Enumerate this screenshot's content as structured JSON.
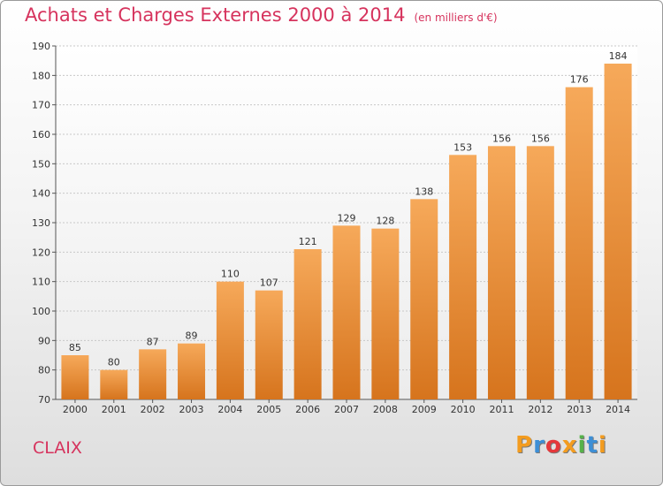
{
  "header": {
    "title": "Achats et Charges Externes 2000 à 2014",
    "unit": "(en milliers d'€)"
  },
  "footer": {
    "commune": "CLAIX",
    "logo_letters": [
      "P",
      "r",
      "o",
      "x",
      "i",
      "t",
      "i"
    ],
    "logo_colors": [
      "#f39c1f",
      "#3d8fd6",
      "#e5383b",
      "#f39c1f",
      "#56b24a",
      "#3d8fd6",
      "#f39c1f"
    ]
  },
  "colors": {
    "bar_light": "#f6a95a",
    "bar_dark": "#d6741d",
    "title": "#d6335d",
    "grid": "#c8c8c8"
  },
  "chart_data": {
    "type": "bar",
    "title": "Achats et Charges Externes 2000 à 2014",
    "subtitle": "(en milliers d'€)",
    "categories": [
      "2000",
      "2001",
      "2002",
      "2003",
      "2004",
      "2005",
      "2006",
      "2007",
      "2008",
      "2009",
      "2010",
      "2011",
      "2012",
      "2013",
      "2014"
    ],
    "values": [
      85,
      80,
      87,
      89,
      110,
      107,
      121,
      129,
      128,
      138,
      153,
      156,
      156,
      176,
      184
    ],
    "ylim": [
      70,
      190
    ],
    "yticks": [
      70,
      80,
      90,
      100,
      110,
      120,
      130,
      140,
      150,
      160,
      170,
      180,
      190
    ],
    "grid": true,
    "data_labels": true
  }
}
